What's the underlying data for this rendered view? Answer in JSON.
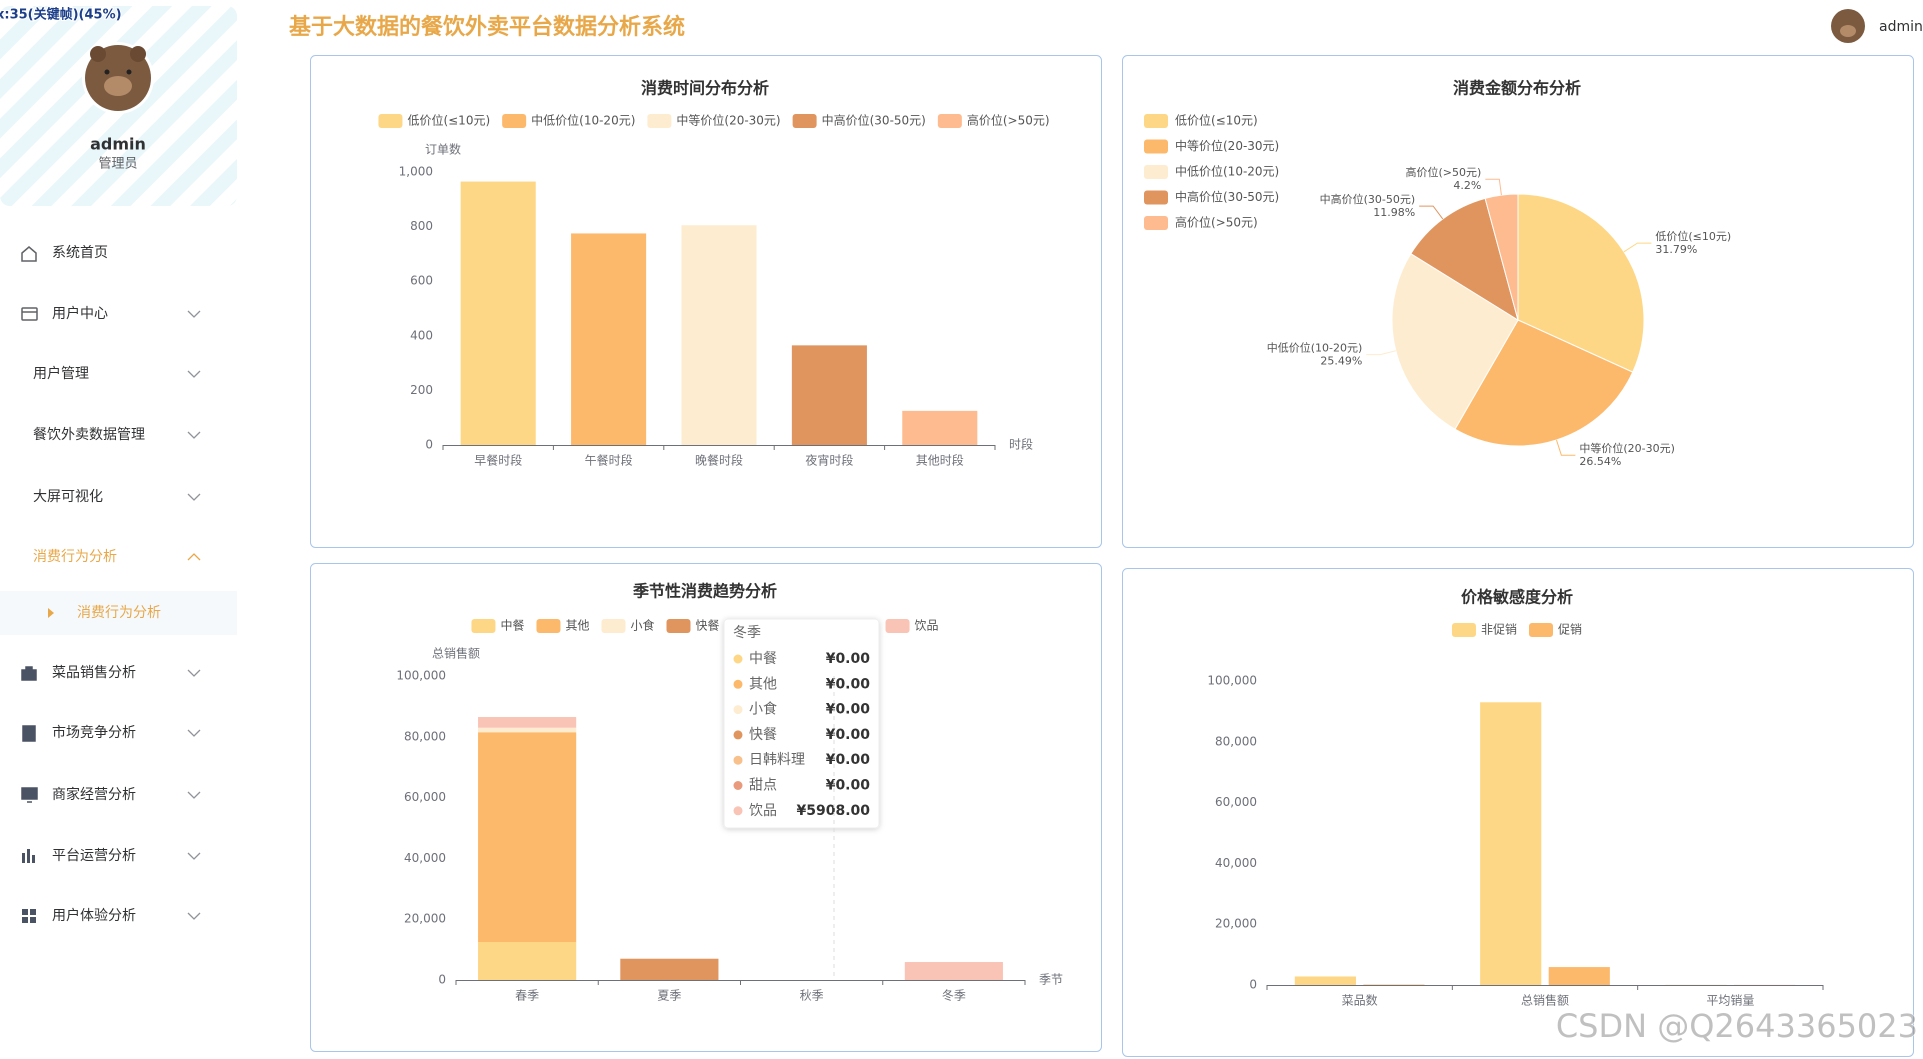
{
  "overlay": "x:35(关键帧)(45%)",
  "header": {
    "title": "基于大数据的餐饮外卖平台数据分析系统",
    "user": "admin"
  },
  "sidebar": {
    "profile": {
      "name": "admin",
      "role": "管理员"
    },
    "menu": [
      {
        "label": "系统首页"
      },
      {
        "label": "用户中心"
      },
      {
        "label": "用户管理"
      },
      {
        "label": "餐饮外卖数据管理"
      },
      {
        "label": "大屏可视化"
      },
      {
        "label": "消费行为分析",
        "active": true
      },
      {
        "label": "消费行为分析",
        "active": true
      },
      {
        "label": "菜品销售分析"
      },
      {
        "label": "市场竞争分析"
      },
      {
        "label": "商家经营分析"
      },
      {
        "label": "平台运营分析"
      },
      {
        "label": "用户体验分析"
      }
    ]
  },
  "chart_data": [
    {
      "type": "bar",
      "title": "消费时间分布分析",
      "legend": [
        "低价位(≤10元)",
        "中低价位(10-20元)",
        "中等价位(20-30元)",
        "中高价位(30-50元)",
        "高价位(>50元)"
      ],
      "categories": [
        "早餐时段",
        "午餐时段",
        "晚餐时段",
        "夜宵时段",
        "其他时段"
      ],
      "values": [
        965,
        775,
        805,
        365,
        125
      ],
      "colors": [
        "#fdd785",
        "#fdb96b",
        "#fdecd0",
        "#e0955f",
        "#fdbb8f"
      ],
      "y_label": "订单数",
      "x_label": "时段",
      "grid": false,
      "ylim": [
        0,
        1000
      ],
      "yticks": [
        0,
        200,
        400,
        600,
        800,
        {
          "value": 1000,
          "label": "1,000"
        }
      ]
    },
    {
      "type": "pie",
      "title": "消费金额分布分析",
      "categories": [
        "低价位(≤10元)",
        "中等价位(20-30元)",
        "中低价位(10-20元)",
        "中高价位(30-50元)",
        "高价位(>50元)"
      ],
      "values": [
        31.79,
        26.54,
        25.49,
        11.98,
        4.2
      ],
      "value_labels": [
        "31.79%",
        "26.54%",
        "25.49%",
        "11.98%",
        "4.2%"
      ],
      "colors": [
        "#fdd785",
        "#fdb96b",
        "#fdecd0",
        "#e0955f",
        "#fdbb8f"
      ]
    },
    {
      "type": "stacked_bar",
      "title": "季节性消费趋势分析",
      "categories": [
        "春季",
        "夏季",
        "秋季",
        "冬季"
      ],
      "series": [
        {
          "name": "中餐",
          "color": "#fdd785",
          "values": [
            12500,
            0,
            0,
            0
          ]
        },
        {
          "name": "其他",
          "color": "#fdb96b",
          "values": [
            69000,
            0,
            0,
            0
          ]
        },
        {
          "name": "小食",
          "color": "#fdecd0",
          "values": [
            1500,
            0,
            0,
            0
          ]
        },
        {
          "name": "快餐",
          "color": "#e0955f",
          "values": [
            0,
            7000,
            0,
            0
          ]
        },
        {
          "name": "日韩料理",
          "color": "#f8c08a",
          "values": [
            0,
            0,
            0,
            0
          ]
        },
        {
          "name": "甜点",
          "color": "#e99a7c",
          "values": [
            0,
            0,
            0,
            0
          ]
        },
        {
          "name": "饮品",
          "color": "#f9c3b5",
          "values": [
            3500,
            0,
            0,
            5908
          ]
        }
      ],
      "y_label": "总销售额",
      "x_label": "季节",
      "grid": false,
      "ylim": [
        0,
        100000
      ],
      "yticks": [
        0,
        {
          "value": 20000,
          "label": "20,000"
        },
        {
          "value": 40000,
          "label": "40,000"
        },
        {
          "value": 60000,
          "label": "60,000"
        },
        {
          "value": 80000,
          "label": "80,000"
        },
        {
          "value": 100000,
          "label": "100,000"
        }
      ]
    },
    {
      "type": "grouped_bar",
      "title": "价格敏感度分析",
      "categories": [
        "菜品数",
        "总销售额",
        "平均销量"
      ],
      "series": [
        {
          "name": "非促销",
          "color": "#fdd785",
          "values": [
            2800,
            93000,
            60
          ]
        },
        {
          "name": "促销",
          "color": "#fdb96b",
          "values": [
            150,
            5900,
            40
          ]
        }
      ],
      "grid": false,
      "ylim": [
        0,
        100000
      ],
      "yticks": [
        0,
        {
          "value": 20000,
          "label": "20,000"
        },
        {
          "value": 40000,
          "label": "40,000"
        },
        {
          "value": 60000,
          "label": "60,000"
        },
        {
          "value": 80000,
          "label": "80,000"
        },
        {
          "value": 100000,
          "label": "100,000"
        }
      ]
    }
  ],
  "tooltip": {
    "title": "冬季",
    "rows": [
      {
        "name": "中餐",
        "value": "¥0.00"
      },
      {
        "name": "其他",
        "value": "¥0.00"
      },
      {
        "name": "小食",
        "value": "¥0.00"
      },
      {
        "name": "快餐",
        "value": "¥0.00"
      },
      {
        "name": "日韩料理",
        "value": "¥0.00"
      },
      {
        "name": "甜点",
        "value": "¥0.00"
      },
      {
        "name": "饮品",
        "value": "¥5908.00"
      }
    ]
  },
  "watermark": "CSDN @Q2643365023"
}
